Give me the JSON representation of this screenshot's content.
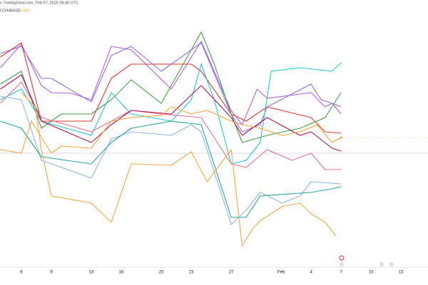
{
  "header": {
    "source": "n TradingView.com, Feb 07, 2025 09:46 UTC",
    "symbol": "COINBASE",
    "change": "4.38%"
  },
  "chart_data": {
    "type": "line",
    "xlim": [
      -2.14,
      40.7
    ],
    "ylim": [
      -16,
      21
    ],
    "baseline": 0,
    "xticks": [
      {
        "value": 0,
        "label": "6"
      },
      {
        "value": 3,
        "label": "9"
      },
      {
        "value": 7,
        "label": "13"
      },
      {
        "value": 10,
        "label": "16"
      },
      {
        "value": 14,
        "label": "20"
      },
      {
        "value": 17,
        "label": "23"
      },
      {
        "value": 21,
        "label": "27"
      },
      {
        "value": 26,
        "label": "Feb"
      },
      {
        "value": 29,
        "label": "4"
      },
      {
        "value": 32,
        "label": "7"
      },
      {
        "value": 35,
        "label": "10"
      },
      {
        "value": 38,
        "label": "13"
      }
    ],
    "series": [
      {
        "color": "#b05ee8",
        "x": [
          -2.1,
          0,
          2,
          3,
          5,
          7,
          9,
          11,
          15,
          18,
          21,
          22.1,
          23.6,
          24.6,
          29,
          30.4,
          31.1,
          32
        ],
        "values": [
          12,
          15.3,
          9.5,
          8.5,
          8.4,
          7.5,
          15,
          14.5,
          9,
          15.7,
          6,
          4,
          9,
          7.7,
          8.5,
          6.5,
          7,
          6.5
        ]
      },
      {
        "color": "#8e6cef",
        "x": [
          -2.1,
          0,
          2,
          3,
          7,
          9,
          11,
          14,
          18,
          21,
          22.1,
          23.9,
          24.6,
          29,
          30,
          31.1,
          32
        ],
        "values": [
          14,
          15,
          10.5,
          10.5,
          7.2,
          13.7,
          15,
          11.5,
          15.5,
          5.5,
          3,
          4,
          6.5,
          9.7,
          7.5,
          7,
          5.5
        ]
      },
      {
        "color": "#e53935",
        "x": [
          -2.1,
          0,
          2,
          7,
          9,
          11,
          17,
          18,
          21,
          22.5,
          24.6,
          29,
          30.4,
          32
        ],
        "values": [
          13.5,
          15.5,
          4.5,
          4.5,
          10.5,
          12.5,
          12.5,
          11.5,
          5.5,
          4.5,
          6.5,
          5,
          3,
          2.8
        ]
      },
      {
        "color": "#43a047",
        "x": [
          -2.1,
          0,
          2,
          4,
          7,
          9,
          11,
          14,
          18,
          19.3,
          21,
          22.1,
          24.6,
          27.9,
          30.4,
          32
        ],
        "values": [
          9.7,
          11.5,
          3.5,
          5.5,
          5.5,
          7.5,
          10.3,
          7,
          17,
          12.5,
          5.5,
          1.5,
          2.5,
          3.5,
          5,
          8.5
        ]
      },
      {
        "color": "#26c6da",
        "x": [
          -2.1,
          0,
          2,
          7,
          9,
          11,
          15,
          17,
          18,
          19.3,
          21,
          22.5,
          23.9,
          25,
          27.9,
          31.1,
          32
        ],
        "values": [
          7.5,
          9,
          4.5,
          2.5,
          8.5,
          5.5,
          4.5,
          7.5,
          12.5,
          7.5,
          -1.5,
          -1,
          1.5,
          11.5,
          12,
          11.5,
          12.7
        ]
      },
      {
        "color": "#ec6f8e",
        "x": [
          -2.1,
          0,
          2,
          7,
          9,
          11,
          14,
          18,
          21,
          22.5,
          24.6,
          27.1,
          29,
          30.4,
          32
        ],
        "values": [
          7,
          10,
          5,
          3,
          4.5,
          6,
          5.5,
          5,
          -1.5,
          -2,
          0.5,
          -1,
          0,
          -2.3,
          -2.3
        ]
      },
      {
        "color": "#ad1457",
        "x": [
          -2.1,
          0,
          2,
          7,
          9,
          11,
          15,
          18,
          21,
          22.1,
          24.6,
          27.9,
          29,
          31.1,
          32
        ],
        "values": [
          9,
          11,
          4.5,
          1.5,
          4,
          6,
          5.5,
          9.5,
          5,
          2.5,
          5,
          2.5,
          3,
          0.7,
          0.3
        ]
      },
      {
        "color": "#90b4e8",
        "x": [
          -2.1,
          0,
          2,
          7,
          9,
          11,
          15,
          17,
          18,
          21,
          22.5,
          23.9,
          26.1,
          27.9,
          29,
          32
        ],
        "values": [
          8,
          7.5,
          -1,
          -3.5,
          2,
          3,
          2.5,
          4,
          3,
          -10,
          -8,
          -5.5,
          -7,
          -6,
          -4,
          -4.3
        ]
      },
      {
        "color": "#26a69a",
        "x": [
          -2.1,
          0,
          2,
          7,
          9,
          11,
          15,
          18,
          21,
          22.5,
          23.9,
          29,
          31.1,
          32
        ],
        "values": [
          4.5,
          3.5,
          -0.5,
          -1.5,
          1.5,
          3.5,
          4.5,
          4,
          -9,
          -9,
          -6,
          -5.5,
          -5,
          -4.7
        ]
      },
      {
        "color": "#f5a742",
        "x": [
          0,
          1.4,
          2,
          3,
          5,
          7,
          9,
          11,
          15,
          17,
          18.6,
          21,
          22.1,
          23.2,
          23.9,
          26.1,
          27.9,
          29,
          30.4,
          31.5
        ],
        "values": [
          8.5,
          6.5,
          0.5,
          -6,
          -6.5,
          -7,
          -9.7,
          -1.5,
          -1.7,
          0.2,
          -4,
          0.5,
          -13,
          -10.5,
          -9.5,
          -7.5,
          -7,
          -8.5,
          -9.7,
          -11.6
        ]
      },
      {
        "name": "COINBASE",
        "color": "#f7a43c",
        "x": [
          -2.1,
          0,
          1,
          3,
          4,
          7,
          9,
          11,
          14,
          15,
          17,
          18.6,
          21,
          22.1,
          23.9,
          26.1,
          27.9,
          29.6,
          31.1,
          32
        ],
        "values": [
          0.5,
          0,
          4.5,
          0,
          1,
          0.7,
          4.5,
          5,
          5.3,
          6.5,
          5.5,
          6,
          4.5,
          4,
          3.5,
          2.5,
          3,
          4,
          1.5,
          2.2
        ]
      }
    ]
  }
}
